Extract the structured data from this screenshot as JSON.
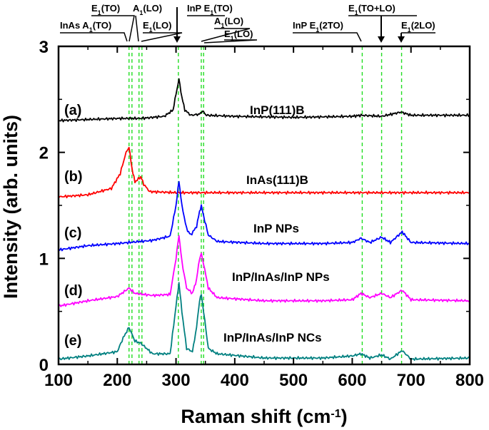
{
  "chart_data": {
    "type": "line",
    "xlabel": "Raman shift (cm",
    "xlabel_sup": "-1",
    "xlabel_end": ")",
    "ylabel": "Intensity (arb. units)",
    "xlim": [
      100,
      800
    ],
    "ylim": [
      0,
      3
    ],
    "x_ticks": [
      100,
      200,
      300,
      400,
      500,
      600,
      700,
      800
    ],
    "y_ticks": [
      0,
      1,
      2,
      3
    ],
    "grid": false,
    "series": [
      {
        "label": "(a)",
        "name": "InP(111)B",
        "color": "#000000",
        "points": [
          [
            100,
            2.3
          ],
          [
            150,
            2.31
          ],
          [
            200,
            2.32
          ],
          [
            240,
            2.32
          ],
          [
            280,
            2.34
          ],
          [
            295,
            2.4
          ],
          [
            300,
            2.55
          ],
          [
            305,
            2.69
          ],
          [
            310,
            2.52
          ],
          [
            315,
            2.4
          ],
          [
            325,
            2.35
          ],
          [
            340,
            2.36
          ],
          [
            345,
            2.39
          ],
          [
            352,
            2.35
          ],
          [
            400,
            2.34
          ],
          [
            500,
            2.33
          ],
          [
            600,
            2.34
          ],
          [
            615,
            2.35
          ],
          [
            650,
            2.34
          ],
          [
            683,
            2.38
          ],
          [
            700,
            2.35
          ],
          [
            800,
            2.35
          ]
        ]
      },
      {
        "label": "(b)",
        "name": "InAs(111)B",
        "color": "#ff0000",
        "points": [
          [
            100,
            1.58
          ],
          [
            150,
            1.6
          ],
          [
            190,
            1.66
          ],
          [
            205,
            1.8
          ],
          [
            215,
            2.0
          ],
          [
            220,
            2.05
          ],
          [
            225,
            1.85
          ],
          [
            230,
            1.72
          ],
          [
            240,
            1.77
          ],
          [
            245,
            1.7
          ],
          [
            255,
            1.63
          ],
          [
            300,
            1.62
          ],
          [
            400,
            1.62
          ],
          [
            500,
            1.62
          ],
          [
            600,
            1.62
          ],
          [
            700,
            1.62
          ],
          [
            800,
            1.62
          ]
        ]
      },
      {
        "label": "(c)",
        "name": "InP NPs",
        "color": "#0000ff",
        "points": [
          [
            100,
            1.08
          ],
          [
            150,
            1.12
          ],
          [
            200,
            1.14
          ],
          [
            260,
            1.17
          ],
          [
            290,
            1.21
          ],
          [
            300,
            1.5
          ],
          [
            305,
            1.73
          ],
          [
            310,
            1.5
          ],
          [
            318,
            1.28
          ],
          [
            325,
            1.22
          ],
          [
            335,
            1.3
          ],
          [
            340,
            1.44
          ],
          [
            343,
            1.5
          ],
          [
            347,
            1.4
          ],
          [
            355,
            1.22
          ],
          [
            370,
            1.16
          ],
          [
            450,
            1.14
          ],
          [
            550,
            1.14
          ],
          [
            600,
            1.15
          ],
          [
            615,
            1.19
          ],
          [
            630,
            1.15
          ],
          [
            650,
            1.2
          ],
          [
            665,
            1.15
          ],
          [
            685,
            1.25
          ],
          [
            700,
            1.15
          ],
          [
            800,
            1.14
          ]
        ]
      },
      {
        "label": "(d)",
        "name": "InP/InAs/InP NPs",
        "color": "#ff00ff",
        "points": [
          [
            100,
            0.55
          ],
          [
            150,
            0.6
          ],
          [
            200,
            0.64
          ],
          [
            220,
            0.72
          ],
          [
            230,
            0.67
          ],
          [
            260,
            0.65
          ],
          [
            290,
            0.66
          ],
          [
            300,
            1.0
          ],
          [
            305,
            1.22
          ],
          [
            310,
            0.97
          ],
          [
            318,
            0.72
          ],
          [
            328,
            0.67
          ],
          [
            335,
            0.8
          ],
          [
            340,
            1.0
          ],
          [
            343,
            1.04
          ],
          [
            347,
            0.95
          ],
          [
            355,
            0.72
          ],
          [
            370,
            0.63
          ],
          [
            450,
            0.6
          ],
          [
            550,
            0.6
          ],
          [
            600,
            0.61
          ],
          [
            615,
            0.67
          ],
          [
            630,
            0.63
          ],
          [
            650,
            0.67
          ],
          [
            665,
            0.63
          ],
          [
            685,
            0.7
          ],
          [
            700,
            0.61
          ],
          [
            800,
            0.6
          ]
        ]
      },
      {
        "label": "(e)",
        "name": "InP/InAs/InP NCs",
        "color": "#008080",
        "points": [
          [
            100,
            0.05
          ],
          [
            150,
            0.08
          ],
          [
            200,
            0.12
          ],
          [
            210,
            0.25
          ],
          [
            220,
            0.35
          ],
          [
            230,
            0.22
          ],
          [
            240,
            0.2
          ],
          [
            260,
            0.1
          ],
          [
            290,
            0.1
          ],
          [
            300,
            0.55
          ],
          [
            305,
            0.77
          ],
          [
            310,
            0.5
          ],
          [
            318,
            0.15
          ],
          [
            328,
            0.12
          ],
          [
            335,
            0.35
          ],
          [
            340,
            0.6
          ],
          [
            343,
            0.66
          ],
          [
            347,
            0.5
          ],
          [
            355,
            0.15
          ],
          [
            370,
            0.1
          ],
          [
            450,
            0.06
          ],
          [
            550,
            0.06
          ],
          [
            600,
            0.08
          ],
          [
            615,
            0.1
          ],
          [
            630,
            0.06
          ],
          [
            650,
            0.09
          ],
          [
            665,
            0.05
          ],
          [
            685,
            0.13
          ],
          [
            700,
            0.05
          ],
          [
            800,
            0.06
          ]
        ]
      }
    ],
    "vlines": [
      {
        "x": 220,
        "name": "InAs A1(TO)"
      },
      {
        "x": 225,
        "name": "E1(TO)"
      },
      {
        "x": 237,
        "name": "A1(LO)"
      },
      {
        "x": 242,
        "name": "E1(LO)"
      },
      {
        "x": 304,
        "name": "InP E1(TO)"
      },
      {
        "x": 343,
        "name": "A1(LO)"
      },
      {
        "x": 347,
        "name": "E1(LO)"
      },
      {
        "x": 617,
        "name": "InP E1(2TO)"
      },
      {
        "x": 650,
        "name": "E1(TO+LO)"
      },
      {
        "x": 684,
        "name": "E1(2LO)"
      }
    ],
    "annotations": [
      {
        "id": "inas-a1to",
        "pre": "InAs A",
        "sub": "1",
        "post": "(TO)"
      },
      {
        "id": "e1to",
        "pre": "E",
        "sub": "1",
        "post": "(TO)"
      },
      {
        "id": "a1lo",
        "pre": "A",
        "sub": "1",
        "post": "(LO)"
      },
      {
        "id": "e1lo",
        "pre": "E",
        "sub": "1",
        "post": "(LO)"
      },
      {
        "id": "inp-e1to",
        "pre": "InP E",
        "sub": "1",
        "post": "(TO)"
      },
      {
        "id": "a1lo-2",
        "pre": "A",
        "sub": "1",
        "post": "(LO)"
      },
      {
        "id": "e1lo-2",
        "pre": "E",
        "sub": "1",
        "post": "(LO)"
      },
      {
        "id": "inp-e12to",
        "pre": "InP E",
        "sub": "1",
        "post": "(2TO)"
      },
      {
        "id": "e1tolo",
        "pre": "E",
        "sub": "1",
        "post": "(TO+LO)"
      },
      {
        "id": "e12lo",
        "pre": "E",
        "sub": "1",
        "post": "(2LO)"
      }
    ]
  }
}
